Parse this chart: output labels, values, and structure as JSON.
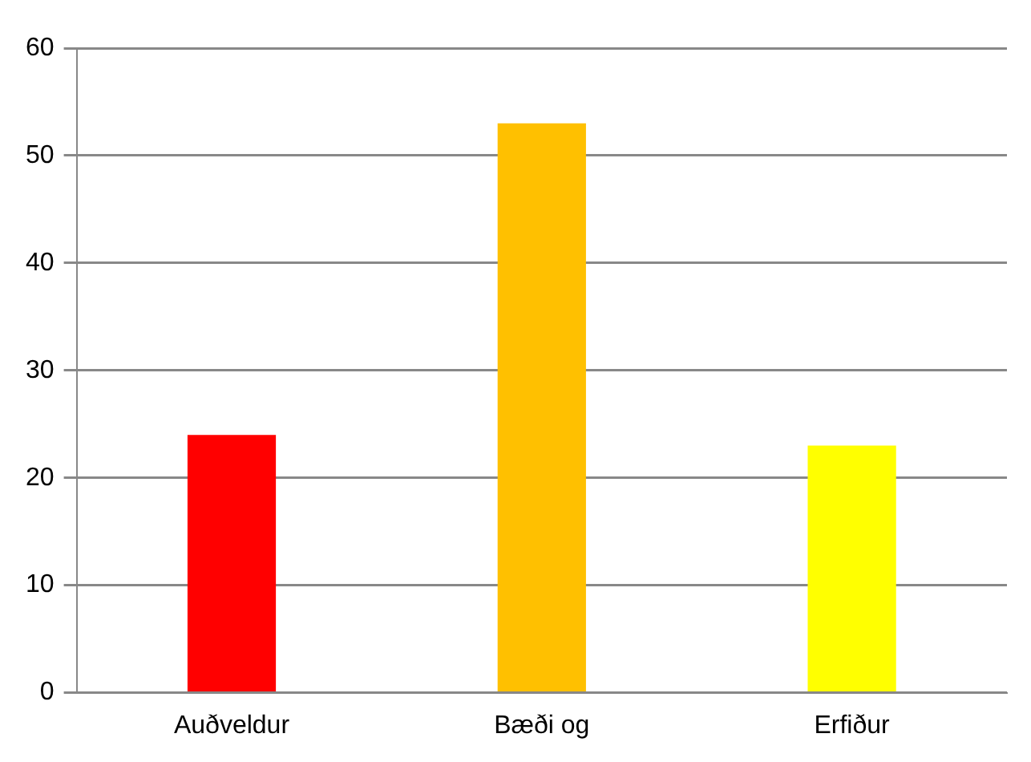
{
  "chart_data": {
    "type": "bar",
    "categories": [
      "Auðveldur",
      "Bæði og",
      "Erfiður"
    ],
    "values": [
      24,
      53,
      23
    ],
    "colors": [
      "#ff0000",
      "#ffc000",
      "#ffff00"
    ],
    "ylim": [
      0,
      60
    ],
    "yticks": [
      0,
      10,
      20,
      30,
      40,
      50,
      60
    ],
    "grid": "y",
    "legend": false
  }
}
